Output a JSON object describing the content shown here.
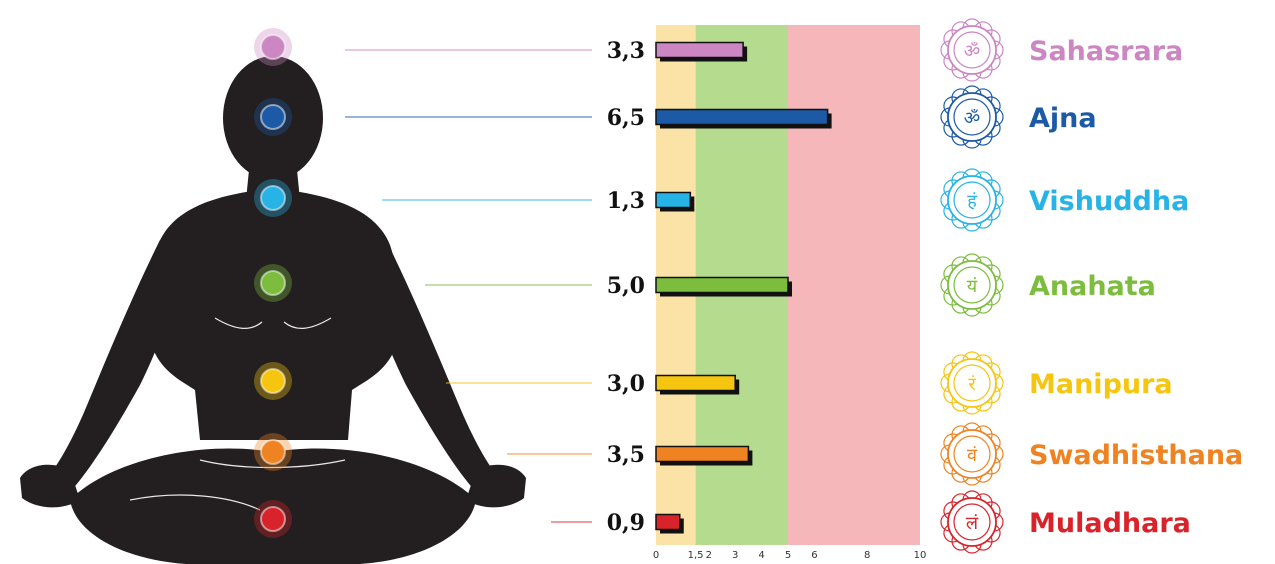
{
  "chart_data": {
    "type": "bar",
    "orientation": "horizontal",
    "categories": [
      "Sahasrara",
      "Ajna",
      "Vishuddha",
      "Anahata",
      "Manipura",
      "Swadhisthana",
      "Muladhara"
    ],
    "values": [
      3.3,
      6.5,
      1.3,
      5.0,
      3.0,
      3.5,
      0.9
    ],
    "value_labels": [
      "3,3",
      "6,5",
      "1,3",
      "5,0",
      "3,0",
      "3,5",
      "0,9"
    ],
    "xlim": [
      0,
      10
    ],
    "x_ticks": [
      0,
      1.5,
      2,
      3,
      4,
      5,
      6,
      8,
      10
    ],
    "x_tick_labels": [
      "0",
      "1,5",
      "2",
      "3",
      "4",
      "5",
      "6",
      "8",
      "10"
    ],
    "bands": [
      {
        "from": 0,
        "to": 1.5,
        "color": "#fbe3a7"
      },
      {
        "from": 1.5,
        "to": 5,
        "color": "#b5db8f"
      },
      {
        "from": 5,
        "to": 10,
        "color": "#f6b7ba"
      }
    ],
    "colors": [
      "#cc86c2",
      "#1c5aa6",
      "#27b3e6",
      "#7cbd3d",
      "#f6c50f",
      "#ef8322",
      "#d9232a"
    ],
    "grid": false,
    "legend": "none"
  },
  "chakras": [
    {
      "name": "Sahasrara",
      "color": "#cc86c2",
      "glyph": "ॐ"
    },
    {
      "name": "Ajna",
      "color": "#1c5aa6",
      "glyph": "ॐ"
    },
    {
      "name": "Vishuddha",
      "color": "#27b3e6",
      "glyph": "हं"
    },
    {
      "name": "Anahata",
      "color": "#7cbd3d",
      "glyph": "यं"
    },
    {
      "name": "Manipura",
      "color": "#f6c50f",
      "glyph": "रं"
    },
    {
      "name": "Swadhisthana",
      "color": "#ef8322",
      "glyph": "वं"
    },
    {
      "name": "Muladhara",
      "color": "#d9232a",
      "glyph": "लं"
    }
  ],
  "figure": {
    "silhouette_color": "#231f20",
    "icon": "meditating-figure-icon"
  }
}
